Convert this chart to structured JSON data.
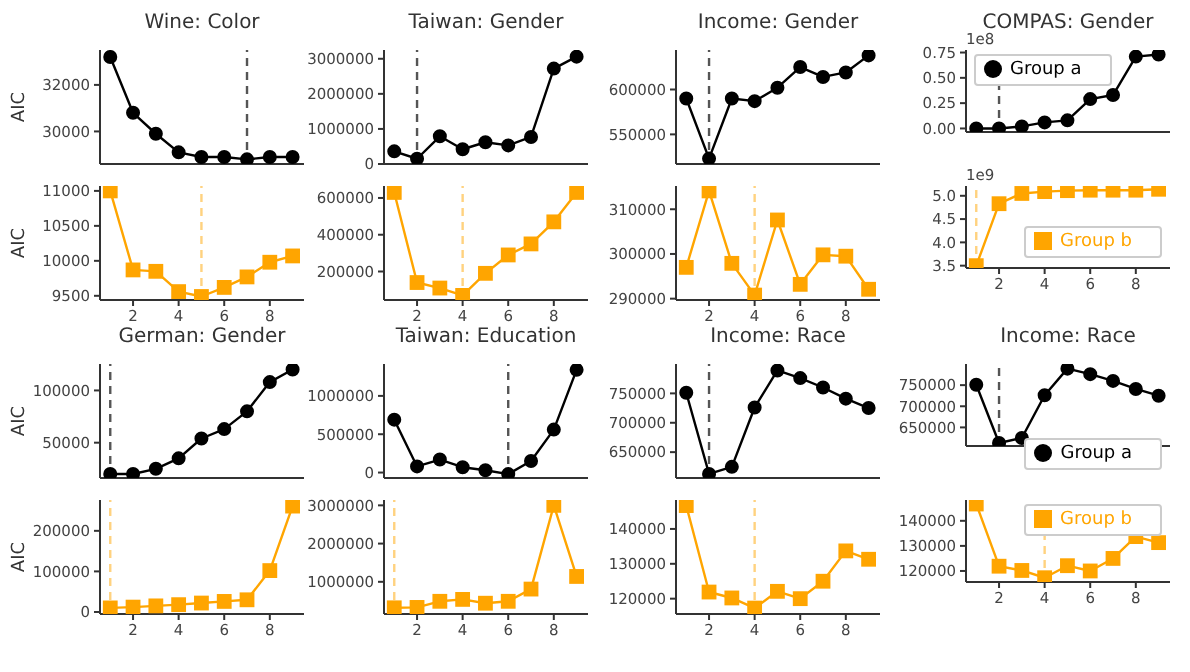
{
  "chart_data": [
    {
      "type": "line",
      "title": "Wine: Color",
      "ylabel": "AIC",
      "x": [
        1,
        2,
        3,
        4,
        5,
        6,
        7,
        8,
        9
      ],
      "xlim": [
        0.55,
        9.5
      ],
      "xticks": [
        2,
        4,
        6,
        8
      ],
      "ylim": [
        28600,
        33500
      ],
      "yticks": [
        30000,
        32000
      ],
      "tick_labels": "y",
      "marker": "circle",
      "series": [
        {
          "color": "#000000",
          "values": [
            33200,
            30800,
            29900,
            29100,
            28900,
            28900,
            28800,
            28900,
            28900
          ]
        }
      ],
      "ref_lines": [
        {
          "axis": "x",
          "value": 7,
          "color": "#555555",
          "line_style": "dashed"
        }
      ]
    },
    {
      "type": "line",
      "title": "Taiwan: Gender",
      "x": [
        1,
        2,
        3,
        4,
        5,
        6,
        7,
        8,
        9
      ],
      "xlim": [
        0.55,
        9.5
      ],
      "xticks": [
        2,
        4,
        6,
        8
      ],
      "ylim": [
        0,
        3250000
      ],
      "yticks": [
        0,
        1000000,
        2000000,
        3000000
      ],
      "tick_labels": "y",
      "marker": "circle",
      "series": [
        {
          "color": "#000000",
          "values": [
            360000,
            150000,
            790000,
            420000,
            620000,
            530000,
            770000,
            2720000,
            3060000
          ]
        }
      ],
      "ref_lines": [
        {
          "axis": "x",
          "value": 2,
          "color": "#555555",
          "line_style": "dashed"
        }
      ]
    },
    {
      "type": "line",
      "title": "Income: Gender",
      "x": [
        1,
        2,
        3,
        4,
        5,
        6,
        7,
        8,
        9
      ],
      "xlim": [
        0.55,
        9.5
      ],
      "xticks": [
        2,
        4,
        6,
        8
      ],
      "ylim": [
        517000,
        644000
      ],
      "yticks": [
        550000,
        600000
      ],
      "tick_labels": "y",
      "marker": "circle",
      "series": [
        {
          "color": "#000000",
          "values": [
            590000,
            523000,
            590000,
            587000,
            602000,
            625000,
            614000,
            619000,
            638000
          ]
        }
      ],
      "ref_lines": [
        {
          "axis": "x",
          "value": 2,
          "color": "#555555",
          "line_style": "dashed"
        }
      ]
    },
    {
      "type": "line",
      "title": "COMPAS: Gender",
      "x": [
        1,
        2,
        3,
        4,
        5,
        6,
        7,
        8,
        9
      ],
      "xlim": [
        0.55,
        9.5
      ],
      "xticks": [
        2,
        4,
        6,
        8
      ],
      "ylim": [
        -0.035,
        0.775
      ],
      "yticks": [
        {
          "value": 0,
          "label": "0.00"
        },
        {
          "value": 0.25,
          "label": "0.25"
        },
        {
          "value": 0.5,
          "label": "0.50"
        },
        {
          "value": 0.75,
          "label": "0.75"
        }
      ],
      "tick_labels": "y",
      "marker": "circle",
      "legend": "top left",
      "annotations": [
        "1e8"
      ],
      "series": [
        {
          "name": "Group a",
          "color": "#000000",
          "values": [
            0,
            0,
            0.02,
            0.06,
            0.08,
            0.29,
            0.33,
            0.71,
            0.73
          ]
        }
      ],
      "ref_lines": [
        {
          "axis": "x",
          "value": 2,
          "color": "#555555",
          "line_style": "dashed"
        }
      ]
    },
    {
      "type": "line",
      "ylabel": "AIC",
      "x": [
        1,
        2,
        3,
        4,
        5,
        6,
        7,
        8,
        9
      ],
      "xlim": [
        0.55,
        9.5
      ],
      "xticks": [
        2,
        4,
        6,
        8
      ],
      "ylim": [
        9440,
        11070
      ],
      "yticks": [
        9500,
        10000,
        10500,
        11000
      ],
      "marker": "square",
      "series": [
        {
          "color": "#ffa500",
          "values": [
            11000,
            9870,
            9850,
            9560,
            9490,
            9620,
            9770,
            9980,
            10070
          ]
        }
      ],
      "ref_lines": [
        {
          "axis": "x",
          "value": 5,
          "color": "#ffd27f",
          "line_style": "dashed"
        }
      ]
    },
    {
      "type": "line",
      "x": [
        1,
        2,
        3,
        4,
        5,
        6,
        7,
        8,
        9
      ],
      "xlim": [
        0.55,
        9.5
      ],
      "xticks": [
        2,
        4,
        6,
        8
      ],
      "ylim": [
        45000,
        665000
      ],
      "yticks": [
        200000,
        400000,
        600000
      ],
      "marker": "square",
      "series": [
        {
          "color": "#ffa500",
          "values": [
            630000,
            140000,
            110000,
            70000,
            190000,
            290000,
            350000,
            470000,
            630000
          ]
        }
      ],
      "ref_lines": [
        {
          "axis": "x",
          "value": 4,
          "color": "#ffd27f",
          "line_style": "dashed"
        }
      ]
    },
    {
      "type": "line",
      "x": [
        1,
        2,
        3,
        4,
        5,
        6,
        7,
        8,
        9
      ],
      "xlim": [
        0.55,
        9.5
      ],
      "xticks": [
        2,
        4,
        6,
        8
      ],
      "ylim": [
        289700,
        315200
      ],
      "yticks": [
        290000,
        300000,
        310000
      ],
      "marker": "square",
      "series": [
        {
          "color": "#ffa500",
          "values": [
            297000,
            314100,
            297900,
            290800,
            307600,
            293200,
            299800,
            299500,
            292100
          ]
        }
      ],
      "ref_lines": [
        {
          "axis": "x",
          "value": 4,
          "color": "#ffd27f",
          "line_style": "dashed"
        }
      ]
    },
    {
      "type": "line",
      "x": [
        1,
        2,
        3,
        4,
        5,
        6,
        7,
        8,
        9
      ],
      "xlim": [
        0.55,
        9.5
      ],
      "xticks": [
        2,
        4,
        6,
        8
      ],
      "ylim": [
        3.45,
        5.21
      ],
      "yticks": [
        {
          "value": 3.5,
          "label": "3.5"
        },
        {
          "value": 4,
          "label": "4.0"
        },
        {
          "value": 4.5,
          "label": "4.5"
        },
        {
          "value": 5,
          "label": "5.0"
        }
      ],
      "marker": "square",
      "legend": "right",
      "annotations": [
        "1e9"
      ],
      "series": [
        {
          "name": "Group b",
          "color": "#ffa500",
          "values": [
            3.5,
            4.83,
            5.05,
            5.09,
            5.11,
            5.12,
            5.12,
            5.12,
            5.14
          ]
        }
      ],
      "ref_lines": [
        {
          "axis": "x",
          "value": 1,
          "color": "#ffd27f",
          "line_style": "dashed"
        }
      ]
    },
    {
      "type": "line",
      "title": "German: Gender",
      "ylabel": "AIC",
      "x": [
        1,
        2,
        3,
        4,
        5,
        6,
        7,
        8,
        9
      ],
      "xlim": [
        0.55,
        9.5
      ],
      "xticks": [
        2,
        4,
        6,
        8
      ],
      "ylim": [
        16200,
        125300
      ],
      "yticks": [
        50000,
        100000
      ],
      "tick_labels": "y",
      "marker": "circle",
      "series": [
        {
          "color": "#000000",
          "values": [
            20000,
            20000,
            25000,
            35000,
            54000,
            63000,
            80000,
            108000,
            120000
          ]
        }
      ],
      "ref_lines": [
        {
          "axis": "x",
          "value": 1,
          "color": "#555555",
          "line_style": "dashed"
        }
      ]
    },
    {
      "type": "line",
      "title": "Taiwan: Education",
      "x": [
        1,
        2,
        3,
        4,
        5,
        6,
        7,
        8,
        9
      ],
      "xlim": [
        0.55,
        9.5
      ],
      "xticks": [
        2,
        4,
        6,
        8
      ],
      "ylim": [
        -71000,
        1416000
      ],
      "yticks": [
        0,
        500000,
        1000000
      ],
      "tick_labels": "y",
      "marker": "circle",
      "series": [
        {
          "color": "#000000",
          "values": [
            690000,
            80000,
            170000,
            70000,
            30000,
            -20000,
            150000,
            560000,
            1340000
          ]
        }
      ],
      "ref_lines": [
        {
          "axis": "x",
          "value": 6,
          "color": "#555555",
          "line_style": "dashed"
        }
      ]
    },
    {
      "type": "line",
      "title": "Income: Race",
      "x": [
        1,
        2,
        3,
        4,
        5,
        6,
        7,
        8,
        9
      ],
      "xlim": [
        0.55,
        9.5
      ],
      "xticks": [
        2,
        4,
        6,
        8
      ],
      "ylim": [
        606000,
        800000
      ],
      "yticks": [
        650000,
        700000,
        750000
      ],
      "tick_labels": "y",
      "marker": "circle",
      "series": [
        {
          "color": "#000000",
          "values": [
            751000,
            613000,
            625000,
            726000,
            789000,
            776000,
            760000,
            741000,
            725000
          ]
        }
      ],
      "ref_lines": [
        {
          "axis": "x",
          "value": 2,
          "color": "#555555",
          "line_style": "dashed"
        }
      ]
    },
    {
      "type": "line",
      "title": "Income: Race",
      "x": [
        1,
        2,
        3,
        4,
        5,
        6,
        7,
        8,
        9
      ],
      "xlim": [
        0.55,
        9.5
      ],
      "xticks": [
        2,
        4,
        6,
        8
      ],
      "ylim": [
        606000,
        800000
      ],
      "yticks": [
        650000,
        700000,
        750000
      ],
      "tick_labels": "y",
      "marker": "circle",
      "legend": "bottom right",
      "series": [
        {
          "name": "Group a",
          "color": "#000000",
          "values": [
            751000,
            613000,
            625000,
            726000,
            789000,
            776000,
            760000,
            741000,
            725000
          ]
        }
      ],
      "ref_lines": [
        {
          "axis": "x",
          "value": 2,
          "color": "#555555",
          "line_style": "dashed"
        }
      ]
    },
    {
      "type": "line",
      "ylabel": "AIC",
      "x": [
        1,
        2,
        3,
        4,
        5,
        6,
        7,
        8,
        9
      ],
      "xlim": [
        0.55,
        9.5
      ],
      "xticks": [
        2,
        4,
        6,
        8
      ],
      "ylim": [
        -5000,
        276000
      ],
      "yticks": [
        0,
        100000,
        200000
      ],
      "marker": "square",
      "series": [
        {
          "color": "#ffa500",
          "values": [
            10000,
            12000,
            15000,
            18000,
            22000,
            26000,
            30000,
            102000,
            261000
          ]
        }
      ],
      "ref_lines": [
        {
          "axis": "x",
          "value": 1,
          "color": "#ffd27f",
          "line_style": "dashed"
        }
      ]
    },
    {
      "type": "line",
      "x": [
        1,
        2,
        3,
        4,
        5,
        6,
        7,
        8,
        9
      ],
      "xlim": [
        0.55,
        9.5
      ],
      "xticks": [
        2,
        4,
        6,
        8
      ],
      "ylim": [
        158000,
        3140000
      ],
      "yticks": [
        1000000,
        2000000,
        3000000
      ],
      "marker": "square",
      "series": [
        {
          "color": "#ffa500",
          "values": [
            320000,
            330000,
            490000,
            540000,
            440000,
            490000,
            810000,
            3000000,
            1140000
          ]
        }
      ],
      "ref_lines": [
        {
          "axis": "x",
          "value": 1,
          "color": "#ffd27f",
          "line_style": "dashed"
        }
      ]
    },
    {
      "type": "line",
      "x": [
        1,
        2,
        3,
        4,
        5,
        6,
        7,
        8,
        9
      ],
      "xlim": [
        0.55,
        9.5
      ],
      "xticks": [
        2,
        4,
        6,
        8
      ],
      "ylim": [
        115600,
        148300
      ],
      "yticks": [
        120000,
        130000,
        140000
      ],
      "marker": "square",
      "series": [
        {
          "color": "#ffa500",
          "values": [
            146700,
            121900,
            120200,
            117300,
            122100,
            120000,
            125000,
            133700,
            131300
          ]
        }
      ],
      "ref_lines": [
        {
          "axis": "x",
          "value": 4,
          "color": "#ffd27f",
          "line_style": "dashed"
        }
      ]
    },
    {
      "type": "line",
      "x": [
        1,
        2,
        3,
        4,
        5,
        6,
        7,
        8,
        9
      ],
      "xlim": [
        0.55,
        9.5
      ],
      "xticks": [
        2,
        4,
        6,
        8
      ],
      "ylim": [
        115600,
        148300
      ],
      "yticks": [
        120000,
        130000,
        140000
      ],
      "marker": "square",
      "legend": "top right",
      "series": [
        {
          "name": "Group b",
          "color": "#ffa500",
          "values": [
            146700,
            121900,
            120200,
            117300,
            122100,
            120000,
            125000,
            133700,
            131300
          ]
        }
      ],
      "ref_lines": [
        {
          "axis": "x",
          "value": 4,
          "color": "#ffd27f",
          "line_style": "dashed"
        }
      ]
    }
  ]
}
